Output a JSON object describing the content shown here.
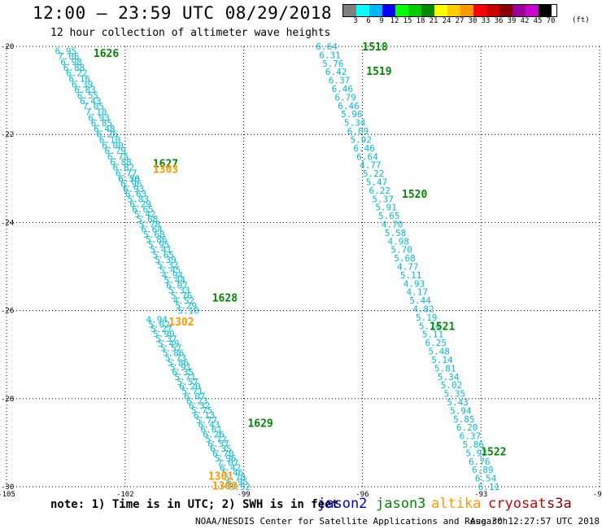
{
  "header": {
    "title": "12:00 – 23:59 UTC 08/29/2018",
    "subtitle": "12 hour collection of altimeter wave heights"
  },
  "color_scale": {
    "colors": [
      "#7f7f7f",
      "#00ffff",
      "#00b7ff",
      "#0000ff",
      "#00ff00",
      "#00cc00",
      "#008800",
      "#ffff00",
      "#ffcc00",
      "#ff9900",
      "#ff0000",
      "#cc0000",
      "#880000",
      "#990099",
      "#cc00cc",
      "#000000"
    ],
    "labels": [
      "3",
      "6",
      "9",
      "12",
      "15",
      "18",
      "21",
      "24",
      "27",
      "30",
      "33",
      "36",
      "39",
      "42",
      "45",
      "70"
    ],
    "unit": "(ft)"
  },
  "axes": {
    "lon_ticks": [
      -105,
      -102,
      -99,
      -96,
      -93,
      -90
    ],
    "lat_ticks": [
      -20,
      -22,
      -24,
      -26,
      -28,
      -30
    ],
    "lon_labels": [
      "-105",
      "-102",
      "-99",
      "-96",
      "-93",
      "-90"
    ],
    "lat_labels": [
      "-20",
      "-22",
      "-24",
      "-26",
      "-28",
      "-30"
    ],
    "lon_range": [
      -105,
      -90
    ],
    "lat_range": [
      -30,
      -20
    ]
  },
  "swh_color": "#00bbdd",
  "satellites": {
    "jason3_color": "#008800",
    "altika_color": "#ff9900"
  },
  "tracks": [
    {
      "sat": "jason3",
      "start": [
        -103.5,
        -20.1
      ],
      "end": [
        -101.9,
        -23.0
      ],
      "values": [
        "6.95",
        "7.06",
        "6.98",
        "6.88",
        "6.22",
        "6.16",
        "6.39",
        "6.83",
        "6.55",
        "6.43",
        "7.05",
        "7.10",
        "6.93",
        "6.85",
        "6.48",
        "6.26",
        "6.10",
        "6.00",
        "6.79",
        "6.75",
        "6.88",
        "6.82",
        "6.77",
        "6.76"
      ]
    },
    {
      "sat": "jason3",
      "start": [
        -101.9,
        -23.0
      ],
      "end": [
        -100.4,
        -26.0
      ],
      "values": [
        "6.50",
        "6.96",
        "6.93",
        "6.63",
        "5.83",
        "6.29",
        "6.65",
        "5.42",
        "5.68",
        "5.78",
        "6.64",
        "5.68",
        "5.86",
        "5.95",
        "5.41",
        "5.65",
        "5.39",
        "5.32",
        "5.45",
        "4.94",
        "5.44",
        "6.07",
        "5.33",
        "5.76",
        "4.52",
        "5.29",
        "5.10"
      ]
    },
    {
      "sat": "jason3",
      "start": [
        -101.2,
        -26.2
      ],
      "end": [
        -99.1,
        -30.0
      ],
      "values": [
        "4.94",
        "5.02",
        "5.27",
        "5.90",
        "5.37",
        "5.49",
        "5.57",
        "5.86",
        "5.73",
        "5.86",
        "5.91",
        "6.35",
        "5.71",
        "5.57",
        "6.20",
        "5.71",
        "6.07",
        "6.23",
        "6.32",
        "5.75",
        "6.13",
        "5.77",
        "6.43",
        "6.61",
        "6.26",
        "5.72",
        "6.57",
        "6.35",
        "6.70",
        "5.96",
        "7.07",
        "6.42",
        "5.46",
        "5.70",
        "6.95",
        "6.52"
      ]
    },
    {
      "sat": "jason3",
      "start": [
        -96.9,
        -20.0
      ],
      "end": [
        -92.8,
        -30.0
      ],
      "values": [
        "6.64",
        "6.31",
        "5.76",
        "6.42",
        "6.37",
        "6.46",
        "6.79",
        "6.46",
        "5.96",
        "5.34",
        "6.09",
        "5.92",
        "6.46",
        "6.64",
        "4.77",
        "5.22",
        "5.47",
        "6.22",
        "5.37",
        "5.91",
        "5.65",
        "4.70",
        "5.58",
        "4.98",
        "5.70",
        "5.68",
        "4.77",
        "5.11",
        "4.93",
        "4.17",
        "5.44",
        "4.82",
        "5.19",
        "5.74",
        "5.11",
        "6.25",
        "5.48",
        "5.14",
        "5.81",
        "5.34",
        "5.02",
        "5.35",
        "5.43",
        "5.94",
        "5.85",
        "6.20",
        "6.37",
        "5.86",
        "5.97",
        "6.76",
        "6.89",
        "6.54",
        "6.11"
      ]
    }
  ],
  "pass_labels": [
    {
      "text": "1626",
      "sat": "jason3",
      "lon": -102.8,
      "lat": -20.15
    },
    {
      "text": "1627",
      "sat": "jason3",
      "lon": -101.3,
      "lat": -22.65
    },
    {
      "text": "1303",
      "sat": "altika",
      "lon": -101.3,
      "lat": -22.78
    },
    {
      "text": "1628",
      "sat": "jason3",
      "lon": -99.8,
      "lat": -25.7
    },
    {
      "text": "1302",
      "sat": "altika",
      "lon": -100.9,
      "lat": -26.25
    },
    {
      "text": "1629",
      "sat": "jason3",
      "lon": -98.9,
      "lat": -28.55
    },
    {
      "text": "1301",
      "sat": "altika",
      "lon": -99.9,
      "lat": -29.75
    },
    {
      "text": "1300",
      "sat": "altika",
      "lon": -99.8,
      "lat": -29.97
    },
    {
      "text": "1518",
      "sat": "jason3",
      "lon": -96.0,
      "lat": -20.0
    },
    {
      "text": "1519",
      "sat": "jason3",
      "lon": -95.9,
      "lat": -20.55
    },
    {
      "text": "1520",
      "sat": "jason3",
      "lon": -95.0,
      "lat": -23.35
    },
    {
      "text": "1521",
      "sat": "jason3",
      "lon": -94.3,
      "lat": -26.35
    },
    {
      "text": "1522",
      "sat": "jason3",
      "lon": -93.0,
      "lat": -29.2
    }
  ],
  "footer": {
    "note": "note: 1) Time is in UTC; 2) SWH is in feet",
    "legend": [
      {
        "label": "jason2",
        "color": "#0000cc"
      },
      {
        "label": "jason3",
        "color": "#008800"
      },
      {
        "label": "altika",
        "color": "#ff9900"
      },
      {
        "label": "cryosat",
        "color": "#cc0000"
      },
      {
        "label": "s3a",
        "color": "#880000"
      }
    ],
    "credit": "NOAA/NESDIS Center for Satellite Applications and Research",
    "timestamp": "Aug 30 12:27:57 UTC 2018"
  }
}
